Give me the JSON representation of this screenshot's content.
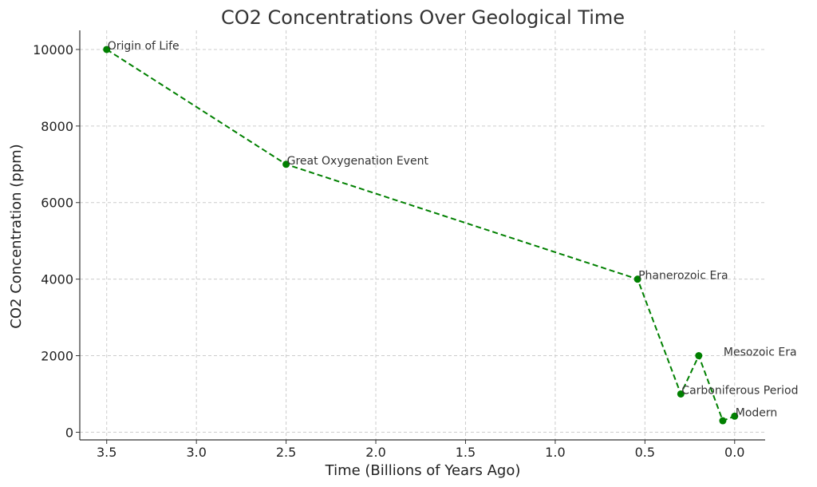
{
  "chart_data": {
    "type": "line",
    "title": "CO2 Concentrations Over Geological Time",
    "xlabel": "Time (Billions of Years Ago)",
    "ylabel": "CO2 Concentration (ppm)",
    "xlim": [
      3.65,
      -0.17
    ],
    "ylim": [
      -200,
      10500
    ],
    "x_ticks": [
      3.5,
      3.0,
      2.5,
      2.0,
      1.5,
      1.0,
      0.5,
      0.0
    ],
    "x_tick_labels": [
      "3.5",
      "3.0",
      "2.5",
      "2.0",
      "1.5",
      "1.0",
      "0.5",
      "0.0"
    ],
    "y_ticks": [
      0,
      2000,
      4000,
      6000,
      8000,
      10000
    ],
    "y_tick_labels": [
      "0",
      "2000",
      "4000",
      "6000",
      "8000",
      "10000"
    ],
    "grid": true,
    "line_style": "dashed",
    "color": "#008000",
    "series": [
      {
        "name": "CO2",
        "x": [
          3.5,
          2.5,
          0.541,
          0.3,
          0.2,
          0.066,
          0.0
        ],
        "values": [
          10000,
          7000,
          4000,
          1000,
          2000,
          300,
          420
        ]
      }
    ],
    "annotations": [
      {
        "text": "Origin of Life",
        "x": 3.5,
        "y": 10000
      },
      {
        "text": "Great Oxygenation Event",
        "x": 2.5,
        "y": 7000
      },
      {
        "text": "Phanerozoic Era",
        "x": 0.541,
        "y": 4000
      },
      {
        "text": "Carboniferous Period",
        "x": 0.3,
        "y": 1000
      },
      {
        "text": "Mesozoic Era",
        "x": 0.066,
        "y": 2000
      },
      {
        "text": "Modern",
        "x": 0.0,
        "y": 420
      }
    ]
  }
}
